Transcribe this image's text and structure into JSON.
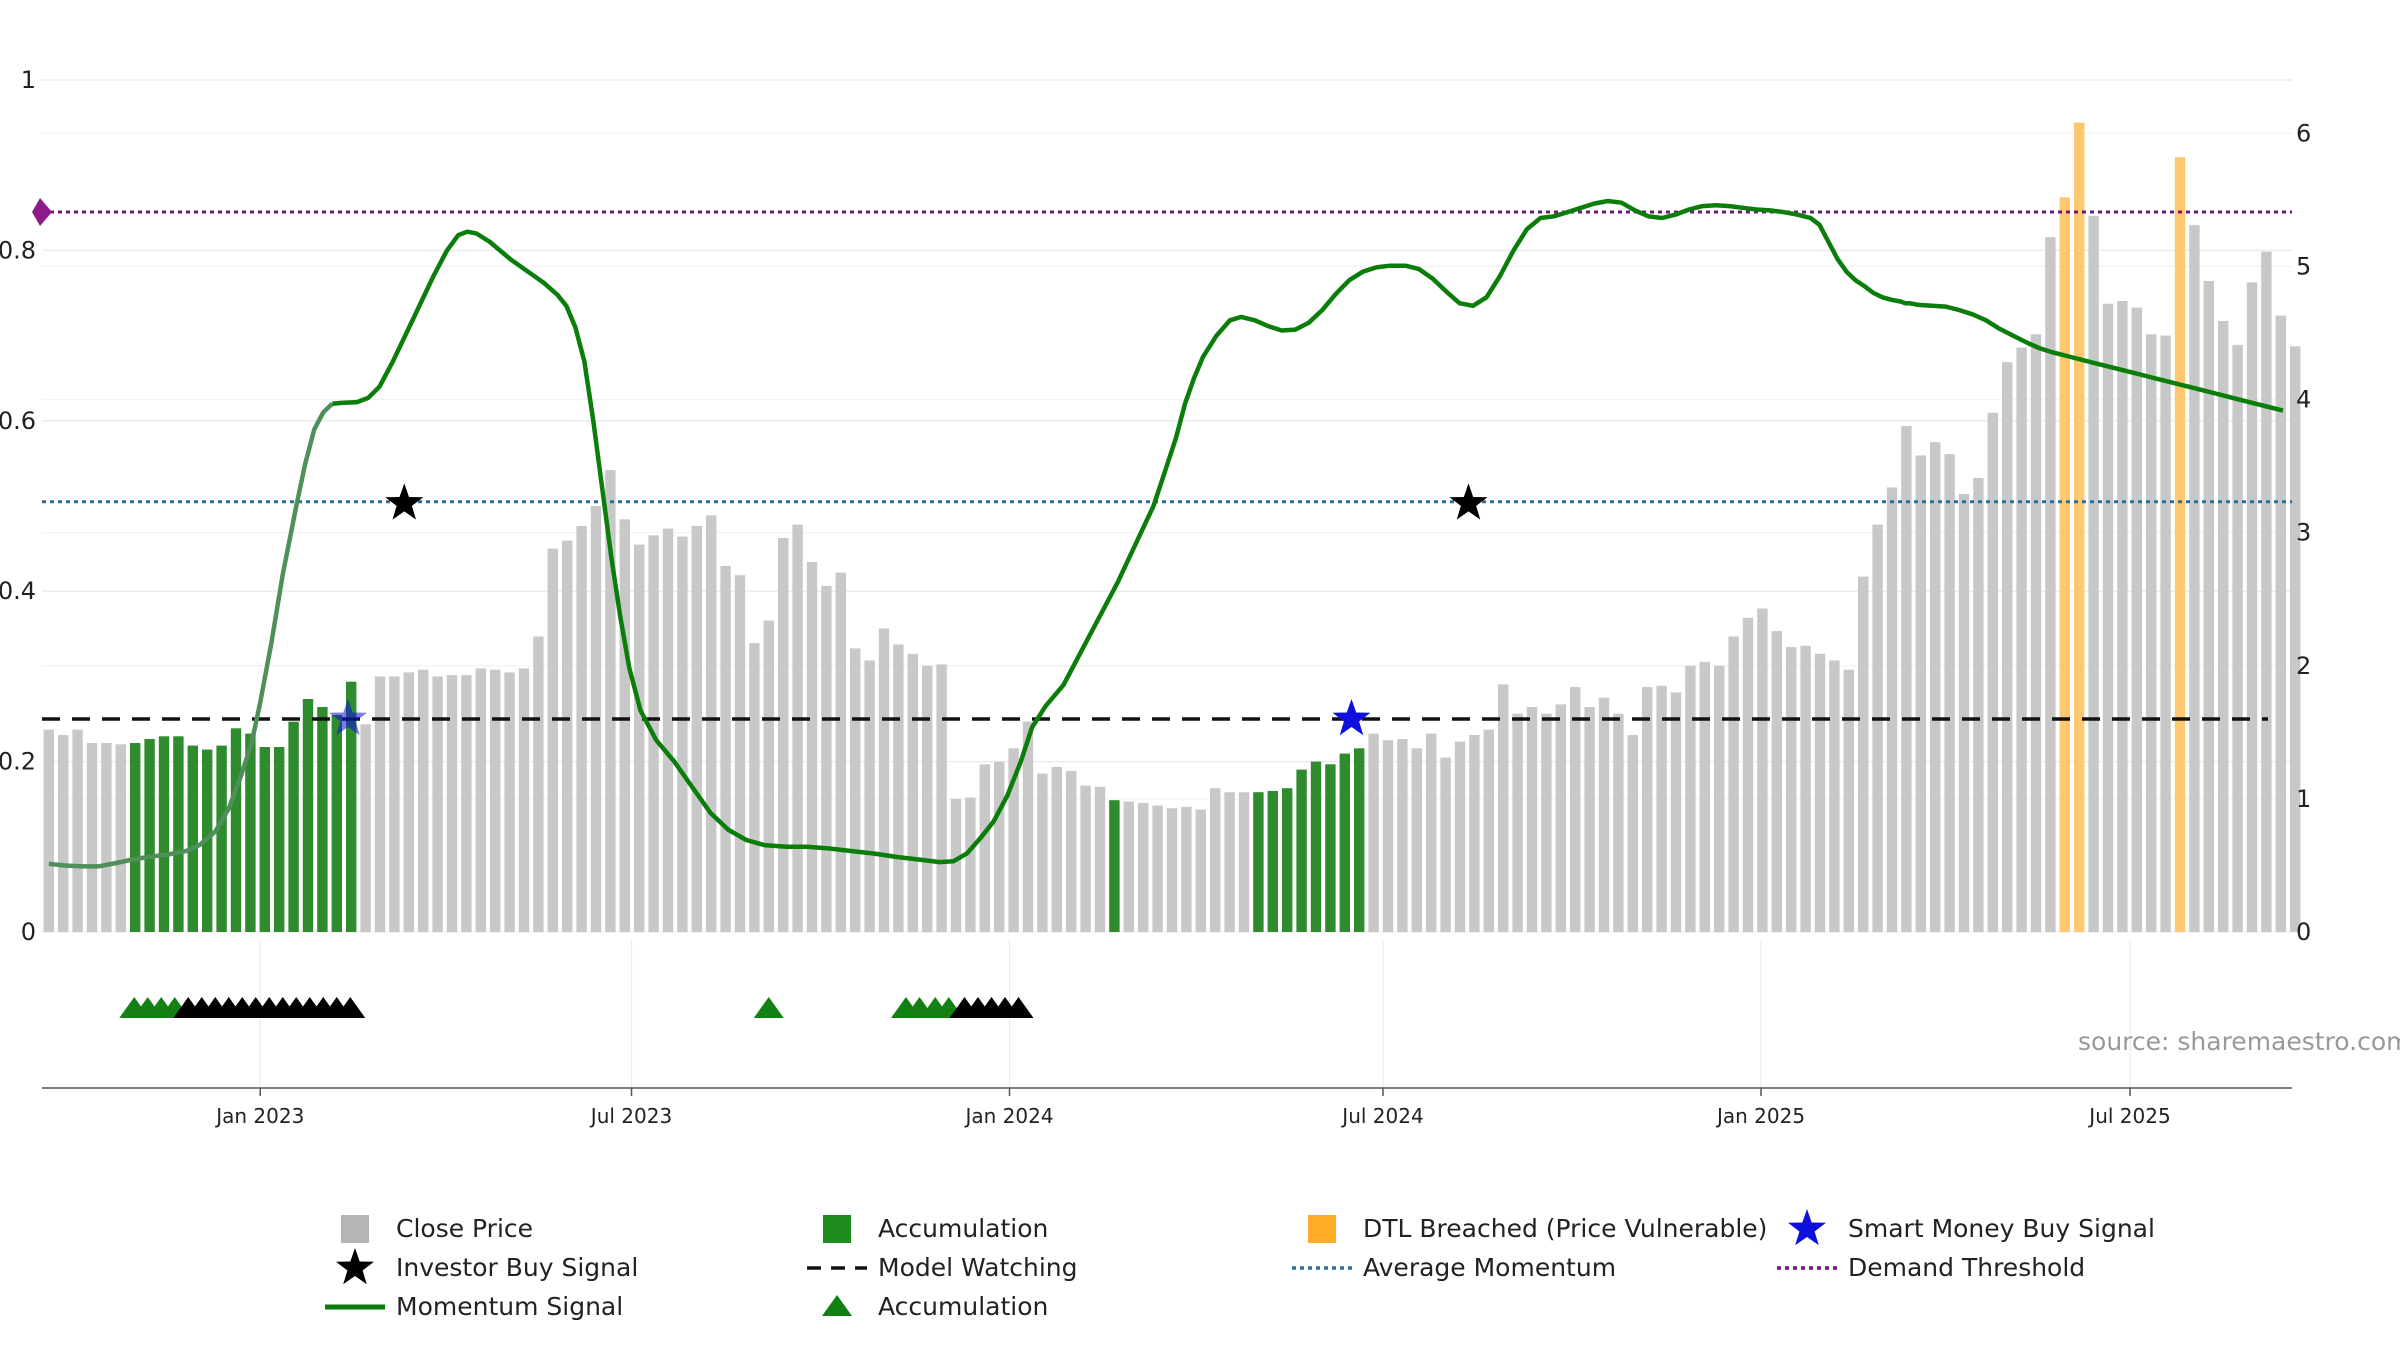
{
  "chart_data": {
    "type": "bar",
    "source_label": "source: sharemaestro.com",
    "colors": {
      "close": "#c8c8c8",
      "accumulation": "#2e8b2e",
      "dtl": "#ffc870",
      "momentum": "#0a7d0a",
      "model_watching": "#111111",
      "average_momentum": "#2b6f9e",
      "demand": "#6e1a7a",
      "demand_marker": "#8b1a8b",
      "investor_star": "#000000",
      "smart_star": "#1010dd",
      "acc_triangle": "#128012",
      "black_triangle": "#000000"
    },
    "left_axis": {
      "ylim": [
        0,
        1
      ],
      "ticks": [
        "0",
        "0.2",
        "0.4",
        "0.6",
        "0.8",
        "1"
      ],
      "tick_values": [
        0,
        0.2,
        0.4,
        0.6,
        0.8,
        1
      ]
    },
    "right_axis": {
      "ylim": [
        0,
        6.4
      ],
      "ticks": [
        "0",
        "1",
        "2",
        "3",
        "4",
        "5",
        "6"
      ],
      "tick_values": [
        0,
        1,
        2,
        3,
        4,
        5,
        6
      ]
    },
    "x_axis": {
      "range": [
        0,
        1000
      ],
      "ticks": [
        {
          "label": "Jan 2023",
          "x": 97
        },
        {
          "label": "Jul 2023",
          "x": 262
        },
        {
          "label": "Jan 2024",
          "x": 430
        },
        {
          "label": "Jul 2024",
          "x": 596
        },
        {
          "label": "Jan 2025",
          "x": 764
        },
        {
          "label": "Jul 2025",
          "x": 928
        }
      ]
    },
    "bars": {
      "start_x": 3,
      "step_x": 6.4,
      "values": [
        1.52,
        1.48,
        1.52,
        1.42,
        1.42,
        1.41,
        1.42,
        1.45,
        1.47,
        1.47,
        1.4,
        1.37,
        1.4,
        1.53,
        1.49,
        1.39,
        1.39,
        1.58,
        1.75,
        1.69,
        1.63,
        1.88,
        1.56,
        1.92,
        1.92,
        1.95,
        1.97,
        1.92,
        1.93,
        1.93,
        1.98,
        1.97,
        1.95,
        1.98,
        2.22,
        2.88,
        2.94,
        3.05,
        3.2,
        3.47,
        3.1,
        2.91,
        2.98,
        3.03,
        2.97,
        3.05,
        3.13,
        2.75,
        2.68,
        2.17,
        2.34,
        2.96,
        3.06,
        2.78,
        2.6,
        2.7,
        2.13,
        2.04,
        2.28,
        2.16,
        2.09,
        2.0,
        2.01,
        1.0,
        1.01,
        1.26,
        1.28,
        1.38,
        1.58,
        1.19,
        1.24,
        1.21,
        1.1,
        1.09,
        0.99,
        0.98,
        0.97,
        0.95,
        0.93,
        0.94,
        0.92,
        1.08,
        1.05,
        1.05,
        1.05,
        1.06,
        1.08,
        1.22,
        1.28,
        1.26,
        1.34,
        1.38,
        1.49,
        1.44,
        1.45,
        1.38,
        1.49,
        1.31,
        1.43,
        1.48,
        1.52,
        1.86,
        1.64,
        1.69,
        1.64,
        1.71,
        1.84,
        1.69,
        1.76,
        1.64,
        1.48,
        1.84,
        1.85,
        1.8,
        2.0,
        2.03,
        2.0,
        2.22,
        2.36,
        2.43,
        2.26,
        2.14,
        2.15,
        2.09,
        2.04,
        1.97,
        2.67,
        3.06,
        3.34,
        3.8,
        3.58,
        3.68,
        3.59,
        3.29,
        3.41,
        3.9,
        4.28,
        4.39,
        4.49,
        5.22,
        5.52,
        6.08,
        5.38,
        4.72,
        4.74,
        4.69,
        4.49,
        4.48,
        5.82,
        5.31,
        4.89,
        4.59,
        4.41,
        4.88,
        5.11,
        4.63,
        4.4
      ],
      "accumulation_ranges": [
        [
          6,
          21
        ],
        [
          74,
          74
        ],
        [
          84,
          91
        ]
      ],
      "dtl_ranges": [
        [
          140,
          141
        ],
        [
          148,
          148
        ]
      ]
    },
    "series": [
      {
        "name": "Momentum Signal",
        "axis": "left",
        "points": [
          [
            3,
            0.08
          ],
          [
            10,
            0.078
          ],
          [
            18,
            0.077
          ],
          [
            25,
            0.077
          ],
          [
            33,
            0.081
          ],
          [
            40,
            0.085
          ],
          [
            47,
            0.088
          ],
          [
            56,
            0.091
          ],
          [
            64,
            0.095
          ],
          [
            70,
            0.102
          ],
          [
            77,
            0.118
          ],
          [
            83,
            0.145
          ],
          [
            88,
            0.18
          ],
          [
            93,
            0.22
          ],
          [
            97,
            0.27
          ],
          [
            102,
            0.34
          ],
          [
            107,
            0.42
          ],
          [
            113,
            0.5
          ],
          [
            117,
            0.55
          ],
          [
            121,
            0.59
          ],
          [
            125,
            0.61
          ],
          [
            129,
            0.62
          ],
          [
            133,
            0.621
          ],
          [
            140,
            0.622
          ],
          [
            145,
            0.627
          ],
          [
            150,
            0.64
          ],
          [
            156,
            0.67
          ],
          [
            165,
            0.72
          ],
          [
            174,
            0.77
          ],
          [
            180,
            0.8
          ],
          [
            185,
            0.818
          ],
          [
            189,
            0.822
          ],
          [
            193,
            0.82
          ],
          [
            199,
            0.81
          ],
          [
            208,
            0.79
          ],
          [
            216,
            0.775
          ],
          [
            223,
            0.762
          ],
          [
            229,
            0.748
          ],
          [
            233,
            0.735
          ],
          [
            237,
            0.71
          ],
          [
            241,
            0.67
          ],
          [
            245,
            0.6
          ],
          [
            249,
            0.52
          ],
          [
            253,
            0.44
          ],
          [
            257,
            0.37
          ],
          [
            261,
            0.31
          ],
          [
            266,
            0.26
          ],
          [
            273,
            0.225
          ],
          [
            281,
            0.2
          ],
          [
            289,
            0.17
          ],
          [
            297,
            0.14
          ],
          [
            305,
            0.12
          ],
          [
            313,
            0.108
          ],
          [
            321,
            0.102
          ],
          [
            331,
            0.1
          ],
          [
            340,
            0.1
          ],
          [
            350,
            0.098
          ],
          [
            360,
            0.095
          ],
          [
            370,
            0.092
          ],
          [
            380,
            0.088
          ],
          [
            390,
            0.085
          ],
          [
            399,
            0.082
          ],
          [
            405,
            0.083
          ],
          [
            411,
            0.092
          ],
          [
            417,
            0.11
          ],
          [
            423,
            0.13
          ],
          [
            429,
            0.16
          ],
          [
            435,
            0.2
          ],
          [
            440,
            0.24
          ],
          [
            446,
            0.265
          ],
          [
            454,
            0.29
          ],
          [
            462,
            0.33
          ],
          [
            470,
            0.37
          ],
          [
            478,
            0.41
          ],
          [
            486,
            0.455
          ],
          [
            494,
            0.5
          ],
          [
            499,
            0.54
          ],
          [
            504,
            0.58
          ],
          [
            508,
            0.62
          ],
          [
            512,
            0.65
          ],
          [
            516,
            0.675
          ],
          [
            522,
            0.7
          ],
          [
            528,
            0.718
          ],
          [
            533,
            0.722
          ],
          [
            539,
            0.718
          ],
          [
            545,
            0.711
          ],
          [
            551,
            0.706
          ],
          [
            557,
            0.707
          ],
          [
            563,
            0.715
          ],
          [
            569,
            0.73
          ],
          [
            575,
            0.749
          ],
          [
            581,
            0.765
          ],
          [
            587,
            0.775
          ],
          [
            593,
            0.78
          ],
          [
            599,
            0.782
          ],
          [
            606,
            0.782
          ],
          [
            612,
            0.778
          ],
          [
            618,
            0.767
          ],
          [
            624,
            0.752
          ],
          [
            630,
            0.738
          ],
          [
            636,
            0.735
          ],
          [
            642,
            0.745
          ],
          [
            648,
            0.77
          ],
          [
            654,
            0.8
          ],
          [
            660,
            0.825
          ],
          [
            666,
            0.838
          ],
          [
            672,
            0.84
          ],
          [
            678,
            0.845
          ],
          [
            684,
            0.85
          ],
          [
            690,
            0.855
          ],
          [
            696,
            0.858
          ],
          [
            702,
            0.856
          ],
          [
            708,
            0.847
          ],
          [
            714,
            0.84
          ],
          [
            720,
            0.838
          ],
          [
            726,
            0.842
          ],
          [
            732,
            0.848
          ],
          [
            738,
            0.852
          ],
          [
            744,
            0.853
          ],
          [
            750,
            0.852
          ],
          [
            756,
            0.85
          ],
          [
            762,
            0.848
          ],
          [
            768,
            0.847
          ],
          [
            774,
            0.845
          ],
          [
            780,
            0.842
          ],
          [
            786,
            0.838
          ],
          [
            790,
            0.83
          ],
          [
            794,
            0.81
          ],
          [
            798,
            0.79
          ],
          [
            802,
            0.775
          ],
          [
            806,
            0.765
          ],
          [
            810,
            0.758
          ],
          [
            814,
            0.75
          ],
          [
            818,
            0.745
          ],
          [
            822,
            0.742
          ],
          [
            826,
            0.74
          ],
          [
            828,
            0.738
          ],
          [
            830,
            0.738
          ],
          [
            834,
            0.736
          ],
          [
            840,
            0.735
          ],
          [
            846,
            0.734
          ],
          [
            852,
            0.73
          ],
          [
            858,
            0.725
          ],
          [
            864,
            0.718
          ],
          [
            870,
            0.708
          ],
          [
            876,
            0.7
          ],
          [
            882,
            0.692
          ],
          [
            888,
            0.685
          ],
          [
            894,
            0.68
          ],
          [
            900,
            0.676
          ],
          [
            906,
            0.672
          ],
          [
            912,
            0.668
          ],
          [
            918,
            0.664
          ],
          [
            924,
            0.66
          ],
          [
            930,
            0.656
          ],
          [
            936,
            0.652
          ],
          [
            942,
            0.648
          ],
          [
            948,
            0.644
          ],
          [
            954,
            0.64
          ],
          [
            960,
            0.636
          ],
          [
            966,
            0.632
          ],
          [
            972,
            0.628
          ],
          [
            978,
            0.624
          ],
          [
            984,
            0.62
          ],
          [
            990,
            0.616
          ],
          [
            996,
            0.612
          ],
          [
            1000,
            0.61
          ]
        ]
      }
    ],
    "momentum_visible_range": [
      3,
      998
    ],
    "thresholds": {
      "average_momentum": 0.505,
      "demand_threshold": 0.845,
      "model_watching_right": 1.6
    },
    "investor_buy_signals": [
      [
        161,
        0.503
      ],
      [
        634,
        0.503
      ]
    ],
    "smart_money_buy_signals": [
      [
        136,
        0.25
      ],
      [
        582,
        0.25
      ]
    ],
    "accumulation_triangles": [
      41,
      47,
      53,
      59,
      323,
      384,
      390,
      397,
      403
    ],
    "black_triangles": [
      65,
      71,
      77,
      83,
      89,
      95,
      101,
      107,
      113,
      119,
      125,
      131,
      137,
      410,
      416,
      422,
      428,
      434
    ],
    "legend": [
      {
        "label": "Close Price",
        "kind": "square-gray"
      },
      {
        "label": "Accumulation",
        "kind": "square-green"
      },
      {
        "label": "DTL Breached (Price Vulnerable)",
        "kind": "square-orange"
      },
      {
        "label": "Smart Money Buy Signal",
        "kind": "star-blue"
      },
      {
        "label": "Investor Buy Signal",
        "kind": "star-black"
      },
      {
        "label": "Model Watching",
        "kind": "dash-black"
      },
      {
        "label": "Average Momentum",
        "kind": "dot-blue"
      },
      {
        "label": "Demand Threshold",
        "kind": "dot-purple"
      },
      {
        "label": "Momentum Signal",
        "kind": "line-green"
      },
      {
        "label": "Accumulation",
        "kind": "triangle-green"
      }
    ]
  }
}
